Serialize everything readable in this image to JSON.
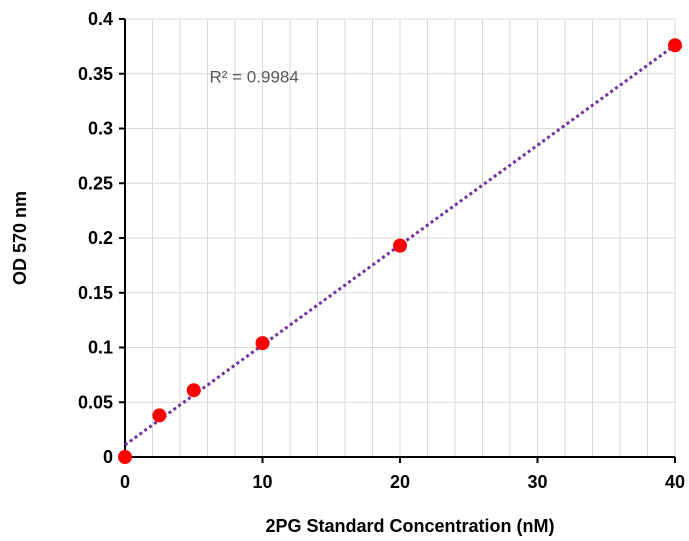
{
  "chart_data": {
    "type": "scatter",
    "title": "",
    "xlabel": "2PG Standard Concentration (nM)",
    "ylabel": "OD 570 nm",
    "xlim": [
      0,
      40
    ],
    "ylim": [
      0,
      0.4
    ],
    "x_ticks": [
      "0",
      "10",
      "20",
      "30",
      "40"
    ],
    "y_ticks": [
      "0",
      "0.05",
      "0.1",
      "0.15",
      "0.2",
      "0.25",
      "0.3",
      "0.35",
      "0.4"
    ],
    "x_tick_values": [
      0,
      10,
      20,
      30,
      40
    ],
    "y_tick_values": [
      0,
      0.05,
      0.1,
      0.15,
      0.2,
      0.25,
      0.3,
      0.35,
      0.4
    ],
    "grid": true,
    "x_minor_step": 2,
    "series": [
      {
        "points": [
          {
            "x": 0,
            "y": 0.0
          },
          {
            "x": 2.5,
            "y": 0.038
          },
          {
            "x": 5,
            "y": 0.061
          },
          {
            "x": 10,
            "y": 0.104
          },
          {
            "x": 20,
            "y": 0.193
          },
          {
            "x": 40,
            "y": 0.376
          }
        ],
        "marker_color": "#ff0000"
      }
    ],
    "trendline": {
      "style": "dotted",
      "color": "#7030a0",
      "x_range": [
        0,
        40
      ],
      "y_range": [
        0.011,
        0.376
      ],
      "annotation": "R² = 0.9984",
      "annotation_x": 6,
      "annotation_y": 0.34
    },
    "axis_color": "#000000",
    "grid_color": "#d9d9d9"
  }
}
